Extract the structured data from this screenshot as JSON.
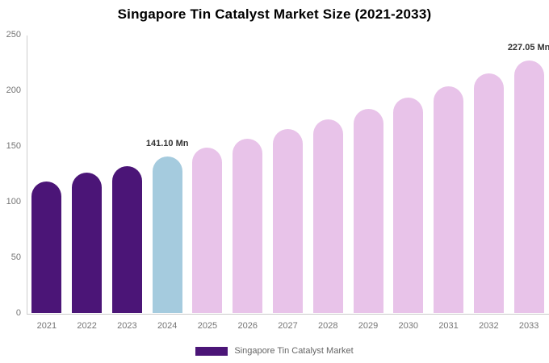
{
  "chart_data": {
    "type": "bar",
    "title": "Singapore Tin Catalyst Market Size (2021-2033)",
    "categories": [
      "2021",
      "2022",
      "2023",
      "2024",
      "2025",
      "2026",
      "2027",
      "2028",
      "2029",
      "2030",
      "2031",
      "2032",
      "2033"
    ],
    "values": [
      118.8,
      126.7,
      132.0,
      141.1,
      148.8,
      156.8,
      165.4,
      174.3,
      183.8,
      193.8,
      204.3,
      215.4,
      227.05
    ],
    "ylim": [
      0,
      250
    ],
    "yticks": [
      0,
      50,
      100,
      150,
      200,
      250
    ],
    "grid": false,
    "xlabel": "",
    "ylabel": "",
    "bar_roles": [
      "historical",
      "historical",
      "historical",
      "highlight",
      "forecast",
      "forecast",
      "forecast",
      "forecast",
      "forecast",
      "forecast",
      "forecast",
      "forecast",
      "forecast"
    ],
    "colors": {
      "historical": "#4b1577",
      "highlight": "#a5cbde",
      "forecast": "#e8c3e9",
      "axis": "#cccccc",
      "tick_text": "#757575",
      "annotation_text": "#333333"
    },
    "annotations": [
      {
        "category": "2024",
        "label": "141.10 Mn"
      },
      {
        "category": "2033",
        "label": "227.05 Mn"
      }
    ],
    "legend": [
      {
        "label": "Singapore Tin Catalyst Market",
        "color": "#4b1577"
      }
    ],
    "legend_position": "bottom"
  }
}
